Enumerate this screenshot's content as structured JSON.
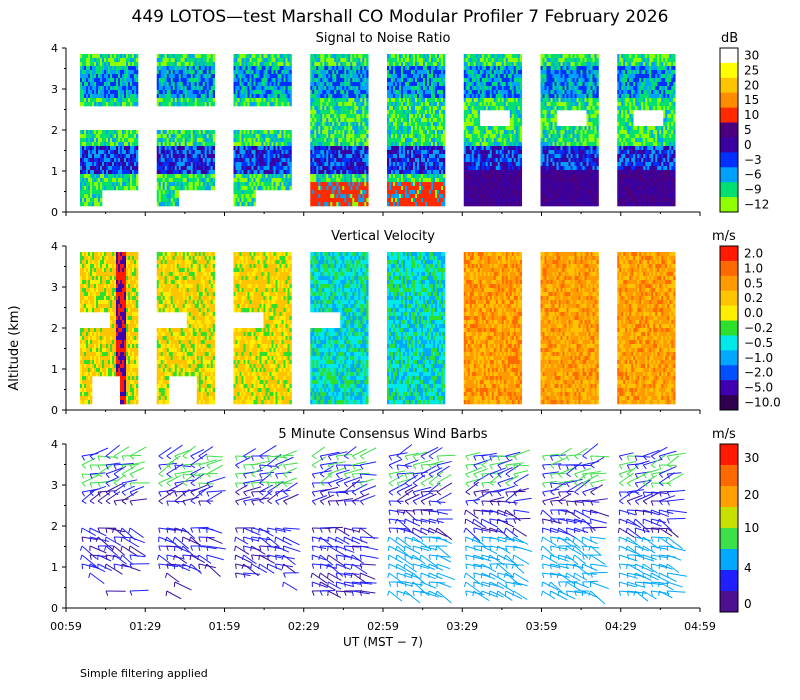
{
  "chart_data": {
    "title": "449 LOTOS—test Marshall CO Modular Profiler  7 February 2026",
    "type": "heatmap",
    "xlabel": "UT  (MST − 7)",
    "ylabel": "Altitude (km)",
    "x_ticks": [
      "00:59",
      "01:29",
      "01:59",
      "02:29",
      "02:59",
      "03:29",
      "03:59",
      "04:29",
      "04:59"
    ],
    "y_ticks": [
      "0",
      "1",
      "2",
      "3",
      "4"
    ],
    "ylim": [
      0,
      4
    ],
    "panels": [
      {
        "id": "snr",
        "title": "Signal to Noise Ratio",
        "unit": "dB",
        "colorbar_labels": [
          "30",
          "25",
          "20",
          "15",
          "10",
          "5",
          "0",
          "−3",
          "−6",
          "−9",
          "−12"
        ],
        "colors": [
          "#ffffff",
          "#ffff00",
          "#ffc400",
          "#ff8c00",
          "#ff2a00",
          "#4c0080",
          "#3a00a0",
          "#0030ff",
          "#00a0ff",
          "#00e070",
          "#90ff00"
        ]
      },
      {
        "id": "vvel",
        "title": "Vertical Velocity",
        "unit": "m/s",
        "colorbar_labels": [
          "2.0",
          "1.0",
          "0.5",
          "0.2",
          "0.0",
          "−0.2",
          "−0.5",
          "−1.0",
          "−2.0",
          "−5.0",
          "−10.0"
        ],
        "colors": [
          "#ff1a00",
          "#ff6a00",
          "#ff9a00",
          "#ffc400",
          "#ffee00",
          "#2ee02e",
          "#00e8e8",
          "#00a8ff",
          "#0050ff",
          "#4000b0",
          "#300050"
        ]
      },
      {
        "id": "wind",
        "title": "5 Minute Consensus Wind Barbs",
        "unit": "m/s",
        "colorbar_labels": [
          "30",
          "20",
          "10",
          "4",
          "0"
        ],
        "colors": [
          "#ff1a00",
          "#ff6a00",
          "#ffa000",
          "#c8e000",
          "#3ee04a",
          "#00a8ff",
          "#2020ff",
          "#4c1090"
        ]
      }
    ]
  },
  "footer": "Simple filtering applied"
}
